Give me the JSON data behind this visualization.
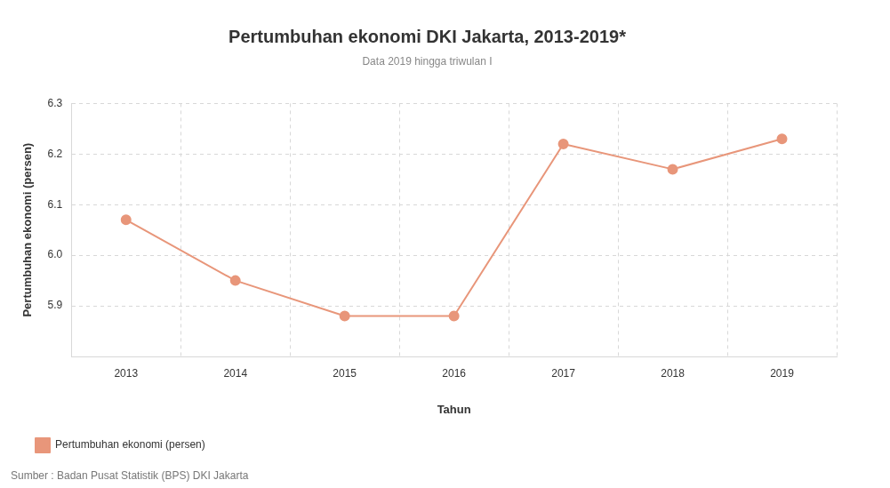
{
  "chart_data": {
    "type": "line",
    "title": "Pertumbuhan ekonomi DKI Jakarta, 2013-2019*",
    "subtitle": "Data 2019 hingga triwulan I",
    "xlabel": "Tahun",
    "ylabel": "Pertumbuhan ekonomi (persen)",
    "categories": [
      "2013",
      "2014",
      "2015",
      "2016",
      "2017",
      "2018",
      "2019"
    ],
    "series": [
      {
        "name": "Pertumbuhan ekonomi (persen)",
        "color": "#e8967a",
        "values": [
          6.07,
          5.95,
          5.88,
          5.88,
          6.22,
          6.17,
          6.23
        ]
      }
    ],
    "ylim": [
      5.8,
      6.3
    ],
    "yticks": [
      {
        "value": 5.8,
        "label": null
      },
      5.9,
      {
        "value": 6.0,
        "label": "6.0"
      },
      6.1,
      6.2,
      6.3
    ],
    "grid": true,
    "legend": "bottom left",
    "marker": "circle",
    "line_style": "solid",
    "annotations": [
      "Sumber : Badan Pusat Statistik (BPS) DKI Jakarta"
    ]
  }
}
